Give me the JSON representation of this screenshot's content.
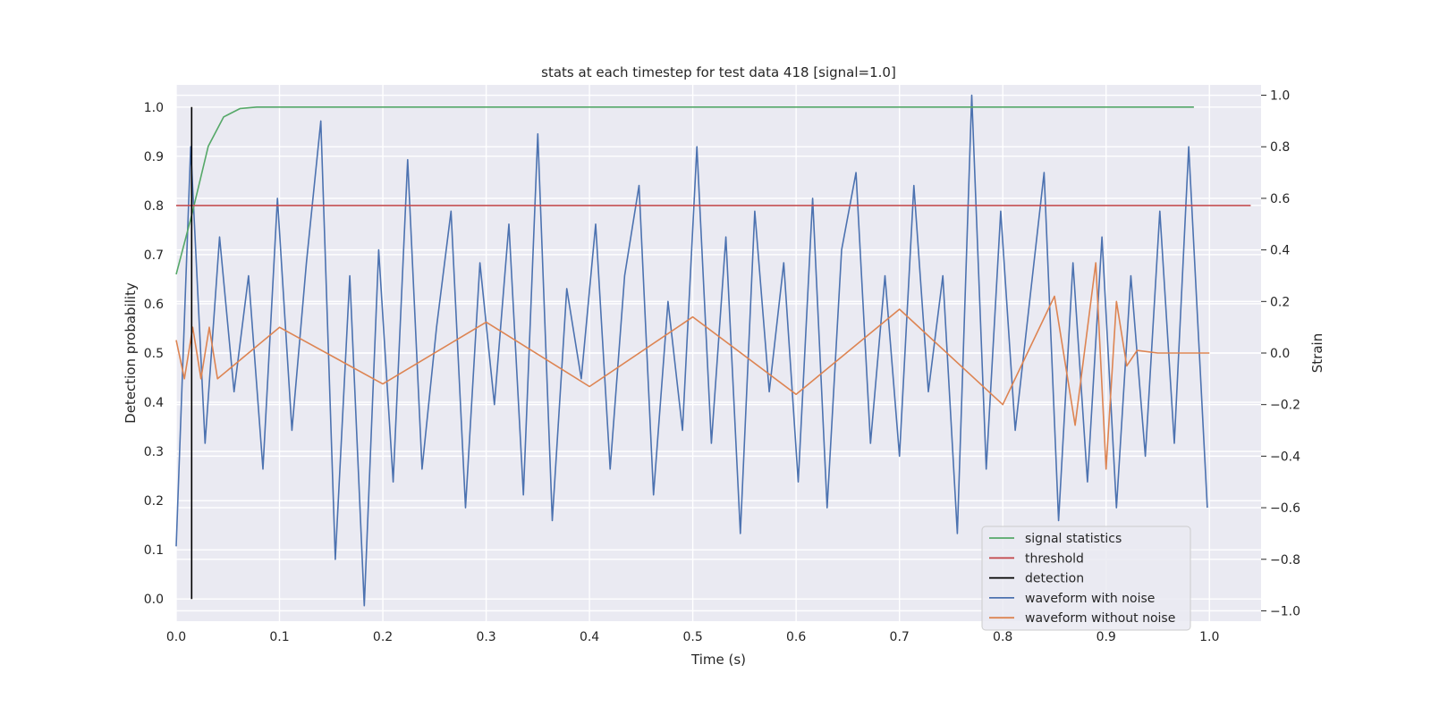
{
  "chart_data": {
    "type": "line",
    "title": "stats at each timestep for test data 418 [signal=1.0]",
    "xlabel": "Time (s)",
    "ylabel": "Detection probability",
    "y2label": "Strain",
    "xlim": [
      0.0,
      1.05
    ],
    "ylim": [
      -0.045,
      1.045
    ],
    "y2lim": [
      -1.04,
      1.04
    ],
    "xticks": [
      "0.0",
      "0.1",
      "0.2",
      "0.3",
      "0.4",
      "0.5",
      "0.6",
      "0.7",
      "0.8",
      "0.9",
      "1.0"
    ],
    "yticks": [
      "0.0",
      "0.1",
      "0.2",
      "0.3",
      "0.4",
      "0.5",
      "0.6",
      "0.7",
      "0.8",
      "0.9",
      "1.0"
    ],
    "y2ticks": [
      "−1.0",
      "−0.8",
      "−0.6",
      "−0.4",
      "−0.2",
      "0.0",
      "0.2",
      "0.4",
      "0.6",
      "0.8",
      "1.0"
    ],
    "grid": true,
    "legend_position": "lower-right",
    "colors": {
      "signal_statistics": "#55a868",
      "threshold": "#c44e52",
      "detection": "#000000",
      "waveform_with_noise": "#4c72b0",
      "waveform_without_noise": "#dd8452",
      "axes_background": "#eaeaf2",
      "grid": "#ffffff"
    },
    "series": [
      {
        "name": "signal statistics",
        "axis": "left",
        "x": [
          0.0,
          0.015,
          0.031,
          0.046,
          0.062,
          0.078,
          0.2,
          0.4,
          0.6,
          0.8,
          0.985
        ],
        "y": [
          0.66,
          0.78,
          0.92,
          0.98,
          0.997,
          1.0,
          1.0,
          1.0,
          1.0,
          1.0,
          1.0
        ]
      },
      {
        "name": "threshold",
        "axis": "left",
        "x": [
          0.0,
          1.04
        ],
        "y": [
          0.8,
          0.8
        ]
      },
      {
        "name": "detection",
        "axis": "left",
        "x": [
          0.015,
          0.015
        ],
        "y": [
          0.0,
          1.0
        ]
      },
      {
        "name": "waveform with noise",
        "axis": "right",
        "x": [
          0.0,
          0.014,
          0.028,
          0.042,
          0.056,
          0.07,
          0.084,
          0.098,
          0.112,
          0.126,
          0.14,
          0.154,
          0.168,
          0.182,
          0.196,
          0.21,
          0.224,
          0.238,
          0.252,
          0.266,
          0.28,
          0.294,
          0.308,
          0.322,
          0.336,
          0.35,
          0.364,
          0.378,
          0.392,
          0.406,
          0.42,
          0.434,
          0.448,
          0.462,
          0.476,
          0.49,
          0.504,
          0.518,
          0.532,
          0.546,
          0.56,
          0.574,
          0.588,
          0.602,
          0.616,
          0.63,
          0.644,
          0.658,
          0.672,
          0.686,
          0.7,
          0.714,
          0.728,
          0.742,
          0.756,
          0.77,
          0.784,
          0.798,
          0.812,
          0.826,
          0.84,
          0.854,
          0.868,
          0.882,
          0.896,
          0.91,
          0.924,
          0.938,
          0.952,
          0.966,
          0.98,
          0.998
        ],
        "y": [
          -0.75,
          0.8,
          -0.35,
          0.45,
          -0.15,
          0.3,
          -0.45,
          0.6,
          -0.3,
          0.35,
          0.9,
          -0.8,
          0.3,
          -0.98,
          0.4,
          -0.5,
          0.75,
          -0.45,
          0.1,
          0.55,
          -0.6,
          0.35,
          -0.2,
          0.5,
          -0.55,
          0.85,
          -0.65,
          0.25,
          -0.1,
          0.5,
          -0.45,
          0.3,
          0.65,
          -0.55,
          0.2,
          -0.3,
          0.8,
          -0.35,
          0.45,
          -0.7,
          0.55,
          -0.15,
          0.35,
          -0.5,
          0.6,
          -0.6,
          0.4,
          0.7,
          -0.35,
          0.3,
          -0.4,
          0.65,
          -0.15,
          0.3,
          -0.7,
          1.0,
          -0.45,
          0.55,
          -0.3,
          0.2,
          0.7,
          -0.65,
          0.35,
          -0.5,
          0.45,
          -0.6,
          0.3,
          -0.4,
          0.55,
          -0.35,
          0.8,
          -0.6
        ]
      },
      {
        "name": "waveform without noise",
        "axis": "right",
        "x": [
          0.0,
          0.008,
          0.016,
          0.024,
          0.032,
          0.04,
          0.1,
          0.2,
          0.3,
          0.4,
          0.5,
          0.6,
          0.7,
          0.8,
          0.85,
          0.87,
          0.89,
          0.9,
          0.91,
          0.92,
          0.93,
          0.95,
          1.0
        ],
        "y": [
          0.05,
          -0.1,
          0.1,
          -0.1,
          0.1,
          -0.1,
          0.1,
          -0.12,
          0.12,
          -0.13,
          0.14,
          -0.16,
          0.17,
          -0.2,
          0.22,
          -0.28,
          0.35,
          -0.45,
          0.2,
          -0.05,
          0.01,
          0.0,
          0.0
        ]
      }
    ]
  }
}
